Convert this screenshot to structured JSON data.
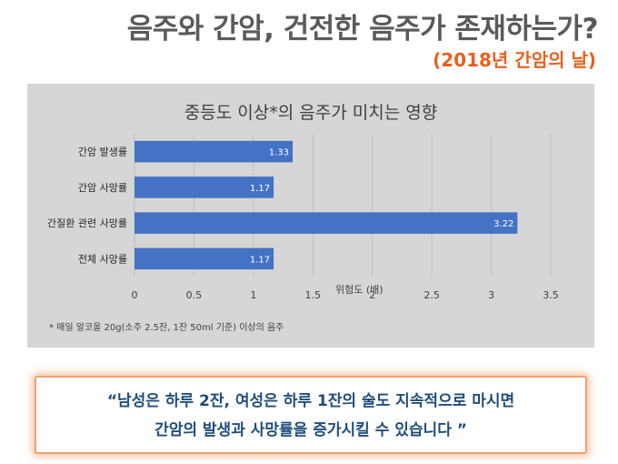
{
  "header": {
    "title": "음주와 간암, 건전한 음주가 존재하는가?",
    "subtitle": "(2018년 간암의 날)"
  },
  "chart_data": {
    "type": "bar",
    "orientation": "horizontal",
    "title": "중등도 이상*의 음주가 미치는 영향",
    "categories": [
      "간암 발생률",
      "간암 사망률",
      "간질환 관련 사망률",
      "전체 사망률"
    ],
    "values": [
      1.33,
      1.17,
      3.22,
      1.17
    ],
    "value_labels": [
      "1.33",
      "1.17",
      "3.22",
      "1.17"
    ],
    "xlabel": "위험도 (배)",
    "xticks": [
      "0",
      "0.5",
      "1",
      "1.5",
      "2",
      "2.5",
      "3",
      "3.5"
    ],
    "xlim": [
      0,
      3.5
    ],
    "grid": true,
    "bar_color": "#4472c4",
    "background_color": "#d6d6d6",
    "footnote": "* 매일 알코올 20g(소주 2.5잔, 1잔 50ml 기준) 이상의 음주"
  },
  "quote": {
    "line1": "“남성은 하루 2잔, 여성은 하루 1잔의 술도 지속적으로 마시면",
    "line2": "간암의 발생과 사망률을 증가시킬 수 있습니다 ”"
  },
  "colors": {
    "title": "#5a5a5a",
    "subtitle": "#e8601c",
    "quote_text": "#1f4e79",
    "quote_border": "#f0a070"
  }
}
